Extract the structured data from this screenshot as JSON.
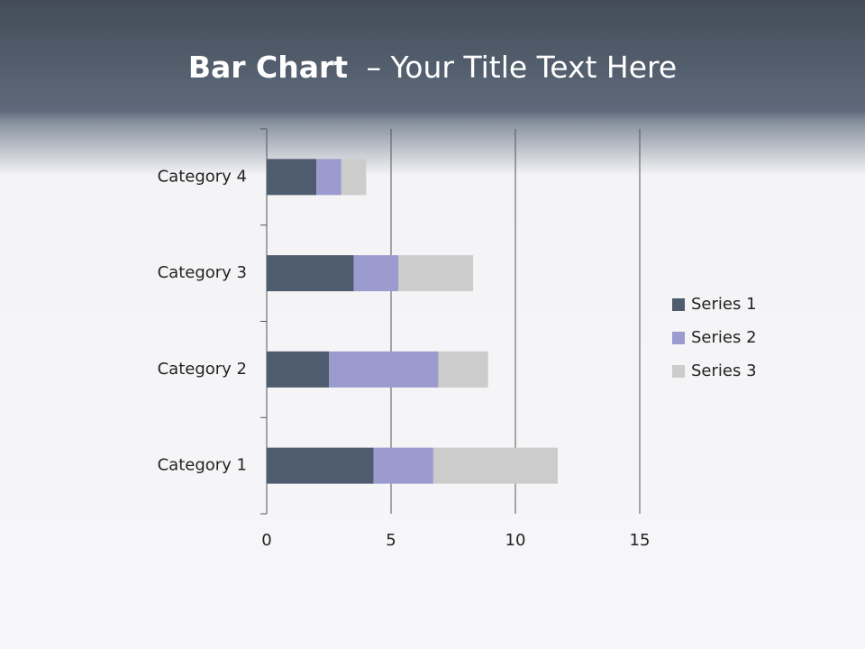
{
  "chart_data": {
    "type": "stacked_barh",
    "title": [
      "Bar Chart",
      "– Your Title Text Here"
    ],
    "categories": [
      "Category 1",
      "Category 2",
      "Category 3",
      "Category 4"
    ],
    "series": [
      {
        "name": "Series 1",
        "color": "#4f5b6e",
        "values": [
          4.3,
          2.5,
          3.5,
          2.0
        ]
      },
      {
        "name": "Series 2",
        "color": "#9b9bd0",
        "values": [
          2.4,
          4.4,
          1.8,
          1.0
        ]
      },
      {
        "name": "Series 3",
        "color": "#cccccc",
        "values": [
          5.0,
          2.0,
          3.0,
          1.0
        ]
      }
    ],
    "xlim": [
      0,
      15
    ],
    "xticks": [
      0,
      5,
      10,
      15
    ],
    "grid": true,
    "legend": "right"
  }
}
